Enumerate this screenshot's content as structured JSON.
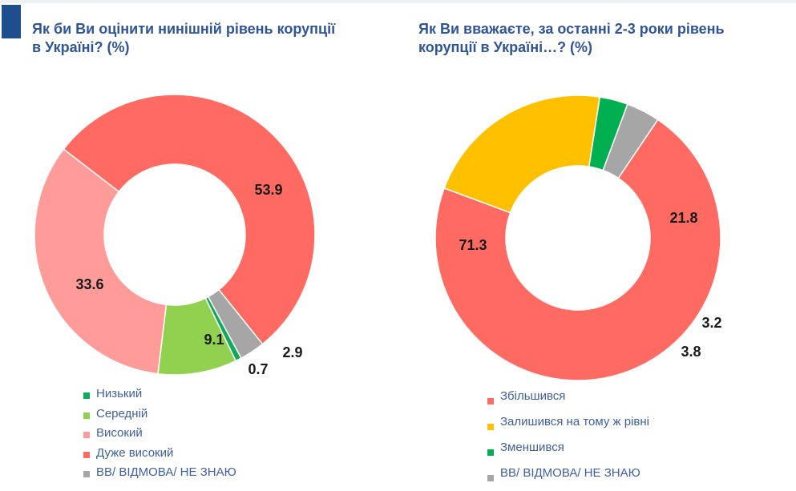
{
  "chart_data": [
    {
      "type": "pie",
      "title": "Як би Ви оцінити нинішній рівень корупції в Україні? (%)",
      "categories": [
        "Низький",
        "Середній",
        "Високий",
        "Дуже високий",
        "ВВ/ ВІДМОВА/ НЕ ЗНАЮ"
      ],
      "values": [
        0.7,
        9.1,
        33.6,
        53.9,
        2.9
      ],
      "value_labels": [
        "0.7",
        "9.1",
        "33.6",
        "53.9",
        "2.9"
      ],
      "colors": [
        "#0fa958",
        "#92d050",
        "#ff9c99",
        "#ff6b63",
        "#a6a6a6"
      ],
      "legend": "bottom"
    },
    {
      "type": "pie",
      "title": "Як Ви вважаєте, за останні 2-3 роки рівень корупції в Україні…? (%)",
      "categories": [
        "Збільшився",
        "Залишився на тому ж рівні",
        "Зменшився",
        "ВВ/ ВІДМОВА/ НЕ ЗНАЮ"
      ],
      "values": [
        71.3,
        21.8,
        3.2,
        3.8
      ],
      "value_labels": [
        "71.3",
        "21.8",
        "3.2",
        "3.8"
      ],
      "colors": [
        "#ff6b63",
        "#ffc000",
        "#00b050",
        "#a6a6a6"
      ],
      "legend": "bottom"
    }
  ]
}
